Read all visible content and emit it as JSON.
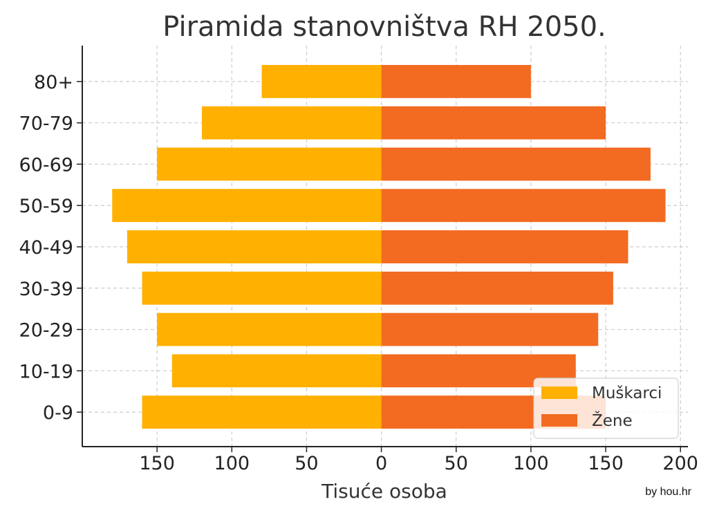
{
  "chart_data": {
    "type": "bar",
    "orientation": "horizontal",
    "title": "Piramida stanovništva RH 2050.",
    "xlabel": "Tisuće osoba",
    "ylabel": "",
    "categories": [
      "0-9",
      "10-19",
      "20-29",
      "30-39",
      "40-49",
      "50-59",
      "60-69",
      "70-79",
      "80+"
    ],
    "series": [
      {
        "name": "Muškarci",
        "color": "#FFB000",
        "values": [
          -160,
          -140,
          -150,
          -160,
          -170,
          -180,
          -150,
          -120,
          -80
        ]
      },
      {
        "name": "Žene",
        "color": "#F26B21",
        "values": [
          150,
          130,
          145,
          155,
          165,
          190,
          180,
          150,
          100
        ]
      }
    ],
    "xlim": [
      -200,
      205
    ],
    "xticks": [
      -150,
      -100,
      -50,
      0,
      50,
      100,
      150,
      200
    ],
    "xtick_labels": [
      "150",
      "100",
      "50",
      "0",
      "50",
      "100",
      "150",
      "200"
    ],
    "grid": true,
    "legend_position": "bottom-right"
  },
  "credit": "by hou.hr"
}
